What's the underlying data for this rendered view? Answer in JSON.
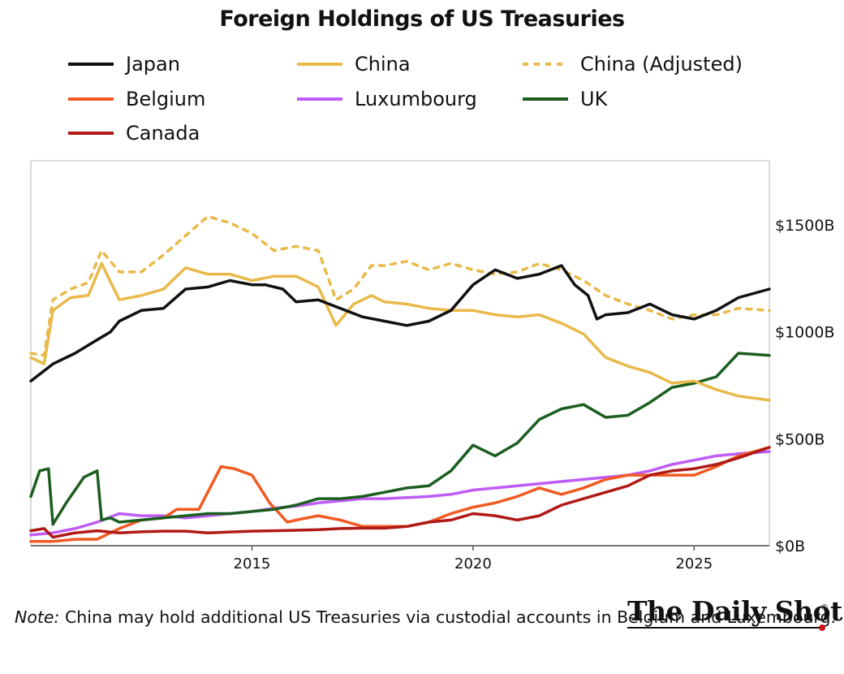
{
  "chart_data": {
    "type": "line",
    "title": "Foreign Holdings of US Treasuries",
    "xlabel": "",
    "ylabel": "",
    "x_ticks": [
      "2015",
      "2020",
      "2025"
    ],
    "y_ticks": [
      "$0B",
      "$500B",
      "$1000B",
      "$1500B"
    ],
    "xlim": [
      2010.0,
      2026.7
    ],
    "ylim": [
      0,
      1800
    ],
    "y_axis_side": "right",
    "legend_position": "top",
    "series": [
      {
        "name": "Japan",
        "color": "#111111",
        "style": "solid",
        "x": [
          2010,
          2010.5,
          2011,
          2011.4,
          2011.8,
          2012,
          2012.5,
          2013,
          2013.5,
          2014,
          2014.5,
          2015,
          2015.3,
          2015.7,
          2016,
          2016.5,
          2017,
          2017.5,
          2018,
          2018.5,
          2019,
          2019.5,
          2020,
          2020.5,
          2021,
          2021.5,
          2022,
          2022.3,
          2022.6,
          2022.8,
          2023,
          2023.5,
          2024,
          2024.5,
          2025,
          2025.5,
          2026,
          2026.7
        ],
        "y": [
          770,
          850,
          900,
          950,
          1000,
          1050,
          1100,
          1110,
          1200,
          1210,
          1240,
          1220,
          1220,
          1200,
          1140,
          1150,
          1110,
          1070,
          1050,
          1030,
          1050,
          1100,
          1220,
          1290,
          1250,
          1270,
          1310,
          1220,
          1170,
          1060,
          1080,
          1090,
          1130,
          1080,
          1060,
          1100,
          1160,
          1200
        ]
      },
      {
        "name": "China",
        "color": "#e9b949",
        "style": "solid",
        "x": [
          2010,
          2010.3,
          2010.5,
          2010.9,
          2011.3,
          2011.6,
          2012,
          2012.5,
          2013,
          2013.5,
          2014,
          2014.5,
          2015,
          2015.5,
          2016,
          2016.5,
          2016.9,
          2017.3,
          2017.7,
          2018,
          2018.5,
          2019,
          2019.5,
          2020,
          2020.5,
          2021,
          2021.5,
          2022,
          2022.5,
          2023,
          2023.5,
          2024,
          2024.5,
          2025,
          2025.5,
          2026,
          2026.7
        ],
        "y": [
          880,
          850,
          1100,
          1160,
          1170,
          1320,
          1150,
          1170,
          1200,
          1300,
          1270,
          1270,
          1240,
          1260,
          1260,
          1210,
          1030,
          1130,
          1170,
          1140,
          1130,
          1110,
          1100,
          1100,
          1080,
          1070,
          1080,
          1040,
          990,
          880,
          840,
          810,
          760,
          770,
          730,
          700,
          680
        ]
      },
      {
        "name": "China (Adjusted)",
        "color": "#e9b949",
        "style": "dotted",
        "x": [
          2010,
          2010.3,
          2010.5,
          2010.9,
          2011.3,
          2011.6,
          2012,
          2012.5,
          2013,
          2013.5,
          2014,
          2014.5,
          2015,
          2015.5,
          2016,
          2016.5,
          2016.9,
          2017.3,
          2017.7,
          2018,
          2018.5,
          2019,
          2019.5,
          2020,
          2020.5,
          2021,
          2021.5,
          2022,
          2022.5,
          2023,
          2023.5,
          2024,
          2024.5,
          2025,
          2025.5,
          2026,
          2026.7
        ],
        "y": [
          900,
          890,
          1150,
          1200,
          1230,
          1380,
          1280,
          1280,
          1360,
          1450,
          1540,
          1510,
          1460,
          1380,
          1400,
          1380,
          1150,
          1200,
          1310,
          1310,
          1330,
          1290,
          1320,
          1290,
          1270,
          1280,
          1320,
          1290,
          1240,
          1170,
          1130,
          1100,
          1060,
          1080,
          1080,
          1110,
          1100
        ]
      },
      {
        "name": "Belgium",
        "color": "#f15a22",
        "style": "solid",
        "x": [
          2010,
          2010.5,
          2011,
          2011.5,
          2012,
          2012.5,
          2013,
          2013.3,
          2013.8,
          2014,
          2014.3,
          2014.6,
          2015,
          2015.4,
          2015.8,
          2016,
          2016.5,
          2017,
          2017.5,
          2018,
          2018.5,
          2019,
          2019.5,
          2020,
          2020.5,
          2021,
          2021.5,
          2022,
          2022.5,
          2023,
          2023.5,
          2024,
          2024.5,
          2025,
          2025.5,
          2026,
          2026.7
        ],
        "y": [
          20,
          20,
          30,
          30,
          80,
          120,
          130,
          170,
          170,
          250,
          370,
          360,
          330,
          200,
          110,
          120,
          140,
          120,
          90,
          90,
          90,
          110,
          150,
          180,
          200,
          230,
          270,
          240,
          270,
          310,
          330,
          330,
          330,
          330,
          370,
          420,
          460
        ]
      },
      {
        "name": "Luxumbourg",
        "color": "#bf5bf7",
        "style": "solid",
        "x": [
          2010,
          2010.5,
          2011,
          2011.5,
          2012,
          2012.5,
          2013,
          2013.5,
          2014,
          2014.5,
          2015,
          2015.5,
          2016,
          2016.5,
          2017,
          2017.5,
          2018,
          2018.5,
          2019,
          2019.5,
          2020,
          2020.5,
          2021,
          2021.5,
          2022,
          2022.5,
          2023,
          2023.5,
          2024,
          2024.5,
          2025,
          2025.5,
          2026,
          2026.7
        ],
        "y": [
          50,
          60,
          80,
          110,
          150,
          140,
          140,
          130,
          140,
          150,
          160,
          175,
          185,
          200,
          210,
          220,
          220,
          225,
          230,
          240,
          260,
          270,
          280,
          290,
          300,
          310,
          320,
          330,
          350,
          380,
          400,
          420,
          430,
          440
        ]
      },
      {
        "name": "UK",
        "color": "#1b5e20",
        "style": "solid",
        "x": [
          2010,
          2010.2,
          2010.4,
          2010.5,
          2010.8,
          2011.2,
          2011.5,
          2011.6,
          2011.8,
          2012,
          2012.5,
          2013,
          2013.5,
          2014,
          2014.5,
          2015,
          2015.5,
          2016,
          2016.5,
          2017,
          2017.5,
          2018,
          2018.5,
          2019,
          2019.5,
          2020,
          2020.5,
          2021,
          2021.5,
          2022,
          2022.5,
          2023,
          2023.5,
          2024,
          2024.5,
          2025,
          2025.5,
          2026,
          2026.7
        ],
        "y": [
          230,
          350,
          360,
          100,
          200,
          320,
          350,
          120,
          130,
          110,
          120,
          130,
          140,
          150,
          150,
          160,
          170,
          190,
          220,
          220,
          230,
          250,
          270,
          280,
          350,
          470,
          420,
          480,
          590,
          640,
          660,
          600,
          610,
          670,
          740,
          760,
          790,
          900,
          890
        ]
      },
      {
        "name": "Canada",
        "color": "#b01916",
        "style": "solid",
        "x": [
          2010,
          2010.3,
          2010.5,
          2011,
          2011.5,
          2012,
          2012.5,
          2013,
          2013.5,
          2014,
          2014.5,
          2015,
          2015.5,
          2016,
          2016.5,
          2017,
          2017.5,
          2018,
          2018.5,
          2019,
          2019.5,
          2020,
          2020.5,
          2021,
          2021.5,
          2022,
          2022.5,
          2023,
          2023.5,
          2024,
          2024.5,
          2025,
          2025.5,
          2026,
          2026.7
        ],
        "y": [
          70,
          80,
          40,
          60,
          70,
          60,
          65,
          68,
          68,
          60,
          64,
          68,
          70,
          72,
          75,
          80,
          82,
          82,
          90,
          110,
          120,
          150,
          140,
          120,
          140,
          190,
          220,
          250,
          280,
          330,
          350,
          360,
          380,
          410,
          460
        ]
      }
    ]
  },
  "note": {
    "label": "Note:",
    "text": " China may hold additional US Treasuries via custodial accounts in Belgium and Luxembourg."
  },
  "brand": {
    "name": "The Daily Shot",
    "mark": "®"
  }
}
